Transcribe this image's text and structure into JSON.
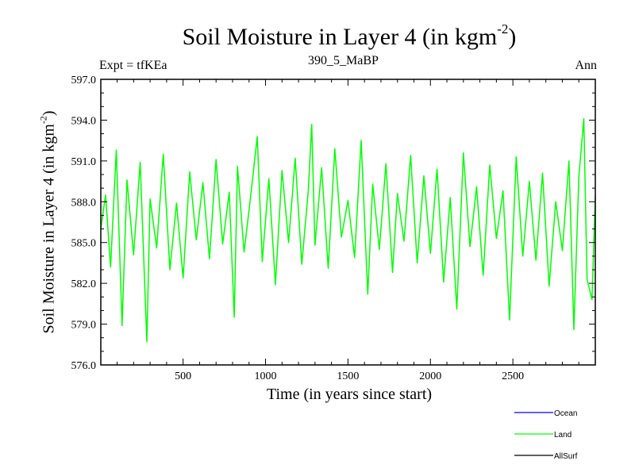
{
  "chart_data": {
    "type": "line",
    "title": "Soil Moisture in Layer 4 (in kgm",
    "title_sup": "-2",
    "title_end": ")",
    "subtitle_left": "Expt = tfKEa",
    "subtitle_center": "390_5_MaBP",
    "subtitle_right": "Ann",
    "xlabel": "Time (in years since start)",
    "ylabel": "Soil Moisture in Layer 4 (in kgm",
    "ylabel_sup": "-2",
    "ylabel_end": ")",
    "xlim": [
      1,
      3000
    ],
    "ylim": [
      576.0,
      597.0
    ],
    "xticks": [
      500,
      1000,
      1500,
      2000,
      2500
    ],
    "xtick_labels": [
      "500",
      "1000",
      "1500",
      "2000",
      "2500"
    ],
    "yticks": [
      576.0,
      579.0,
      582.0,
      585.0,
      588.0,
      591.0,
      594.0,
      597.0
    ],
    "ytick_labels": [
      "576.0",
      "579.0",
      "582.0",
      "585.0",
      "588.0",
      "591.0",
      "594.0",
      "597.0"
    ],
    "legend_placement": "bottom-right",
    "series": [
      {
        "name": "Land",
        "color": "#00ff00",
        "summary": {
          "mean": 586.7,
          "min": 577.7,
          "max": 594.1
        },
        "x": [
          1,
          30,
          60,
          95,
          130,
          160,
          200,
          240,
          280,
          300,
          340,
          380,
          420,
          460,
          500,
          540,
          580,
          620,
          660,
          700,
          740,
          780,
          810,
          830,
          870,
          910,
          950,
          980,
          1020,
          1060,
          1100,
          1140,
          1180,
          1220,
          1260,
          1280,
          1300,
          1340,
          1380,
          1420,
          1460,
          1500,
          1540,
          1580,
          1620,
          1650,
          1690,
          1730,
          1770,
          1800,
          1840,
          1880,
          1920,
          1960,
          2000,
          2040,
          2080,
          2120,
          2160,
          2200,
          2240,
          2280,
          2320,
          2360,
          2400,
          2440,
          2480,
          2520,
          2560,
          2600,
          2640,
          2680,
          2720,
          2760,
          2800,
          2840,
          2870,
          2900,
          2930,
          2950,
          2980,
          3000
        ],
        "values": [
          586.0,
          588.5,
          583.2,
          591.8,
          578.9,
          589.6,
          584.1,
          590.9,
          577.7,
          588.2,
          584.6,
          591.5,
          583.0,
          587.9,
          582.4,
          590.2,
          585.2,
          589.4,
          583.8,
          591.1,
          584.9,
          588.7,
          579.5,
          590.6,
          584.3,
          588.4,
          592.8,
          583.6,
          589.7,
          581.9,
          590.3,
          585.0,
          591.2,
          583.4,
          588.9,
          593.7,
          584.8,
          590.5,
          583.1,
          591.9,
          585.4,
          588.1,
          583.9,
          592.5,
          581.2,
          589.3,
          584.5,
          590.8,
          582.8,
          588.6,
          585.1,
          591.4,
          583.5,
          589.9,
          584.2,
          590.4,
          582.1,
          588.3,
          580.1,
          591.6,
          584.7,
          589.1,
          582.6,
          590.7,
          585.3,
          588.8,
          579.3,
          591.3,
          584.0,
          589.5,
          583.7,
          590.1,
          581.8,
          588.0,
          584.4,
          591.0,
          578.6,
          589.8,
          594.1,
          582.3,
          580.8,
          588.4
        ]
      },
      {
        "name": "Ocean",
        "color": "#0000ff",
        "x": [],
        "values": []
      },
      {
        "name": "AllSurf",
        "color": "#000000",
        "x": [],
        "values": []
      }
    ]
  }
}
